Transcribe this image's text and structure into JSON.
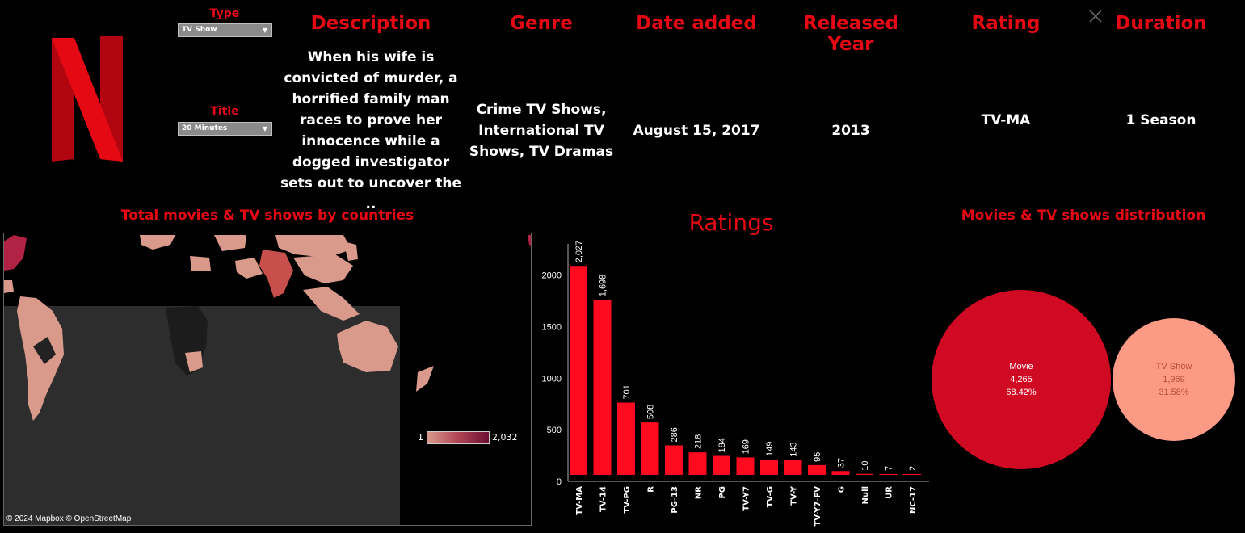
{
  "filters": {
    "type_label": "Type",
    "type_value": "TV Show",
    "title_label": "Title",
    "title_value": "20 Minutes"
  },
  "details": {
    "description_label": "Description",
    "description_lines": [
      "When his wife is",
      "convicted of murder, a",
      "horrified family man",
      "races to prove her",
      "innocence while a",
      "dogged investigator",
      "sets out to uncover the .."
    ],
    "genre_label": "Genre",
    "genre_lines": [
      "Crime TV Shows,",
      "International TV",
      "Shows, TV Dramas"
    ],
    "date_label": "Date added",
    "date_value": "August 15, 2017",
    "year_label": "Released Year",
    "year_value": "2013",
    "rating_label": "Rating",
    "rating_value": "TV-MA",
    "duration_label": "Duration",
    "duration_value": "1 Season"
  },
  "map": {
    "title": "Total movies & TV shows by countries",
    "legend_min": "1",
    "legend_max": "2,032",
    "credit": "© 2024 Mapbox  © OpenStreetMap"
  },
  "chart_data": [
    {
      "type": "bar",
      "title": "Ratings",
      "categories": [
        "TV-MA",
        "TV-14",
        "TV-PG",
        "R",
        "PG-13",
        "NR",
        "PG",
        "TV-Y7",
        "TV-G",
        "TV-Y",
        "TV-Y7-FV",
        "G",
        "Null",
        "UR",
        "NC-17"
      ],
      "values": [
        2027,
        1698,
        701,
        508,
        286,
        218,
        184,
        169,
        149,
        143,
        95,
        37,
        10,
        7,
        2
      ],
      "value_labels": [
        "2,027",
        "1,698",
        "701",
        "508",
        "286",
        "218",
        "184",
        "169",
        "149",
        "143",
        "95",
        "37",
        "10",
        "7",
        "2"
      ],
      "yticks": [
        0,
        500,
        1000,
        1500,
        2000
      ],
      "ylim": [
        0,
        2350
      ],
      "bar_color": "#ff0a1f"
    },
    {
      "type": "bubble",
      "title": "Movies & TV shows distribution",
      "items": [
        {
          "name": "Movie",
          "value": "4,265",
          "percent": "68.42%",
          "color": "#d10a23"
        },
        {
          "name": "TV Show",
          "value": "1,969",
          "percent": "31.58%",
          "color": "#fc9a85"
        }
      ]
    }
  ],
  "icons": {
    "close": "close-icon",
    "logo": "netflix-logo"
  }
}
